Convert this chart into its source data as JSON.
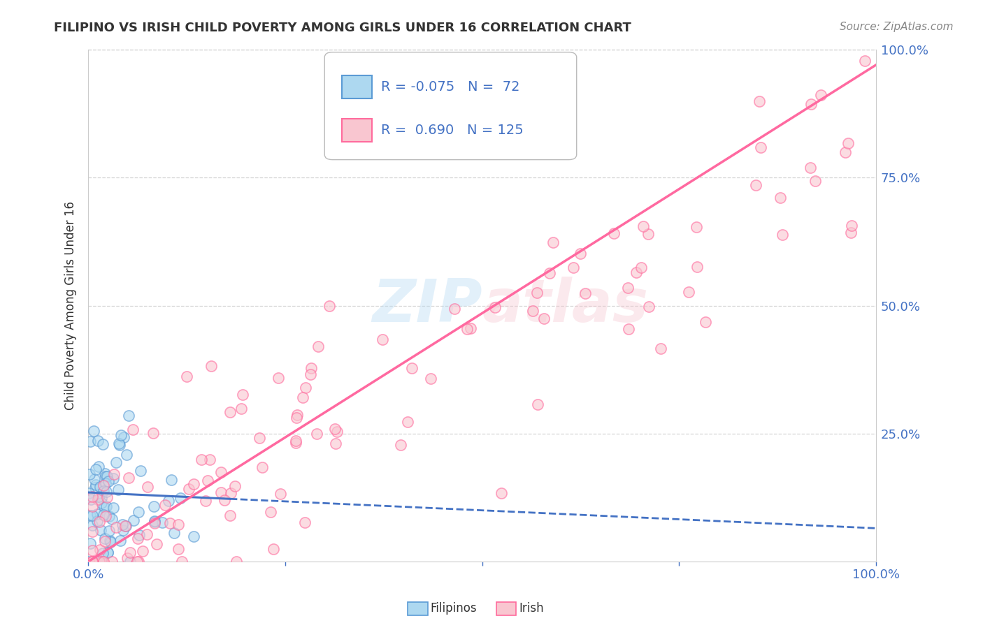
{
  "title": "FILIPINO VS IRISH CHILD POVERTY AMONG GIRLS UNDER 16 CORRELATION CHART",
  "source": "Source: ZipAtlas.com",
  "ylabel": "Child Poverty Among Girls Under 16",
  "legend_label1": "Filipinos",
  "legend_label2": "Irish",
  "R1": "-0.075",
  "N1": "72",
  "R2": "0.690",
  "N2": "125",
  "blue_fill": "#ADD8F0",
  "blue_edge": "#5B9BD5",
  "pink_fill": "#F9C6D0",
  "pink_edge": "#FF6B9D",
  "blue_line_color": "#4472C4",
  "pink_line_color": "#FF69A0",
  "watermark_color": "#AED6F1",
  "background_color": "#FFFFFF",
  "grid_color": "#CCCCCC",
  "text_color": "#333333",
  "axis_label_color": "#4472C4",
  "source_color": "#888888",
  "xlim": [
    0,
    100
  ],
  "ylim": [
    0,
    100
  ],
  "title_fontsize": 13,
  "axis_fontsize": 13,
  "legend_fontsize": 14,
  "scatter_size": 120,
  "scatter_alpha": 0.6,
  "scatter_linewidth": 1.2
}
